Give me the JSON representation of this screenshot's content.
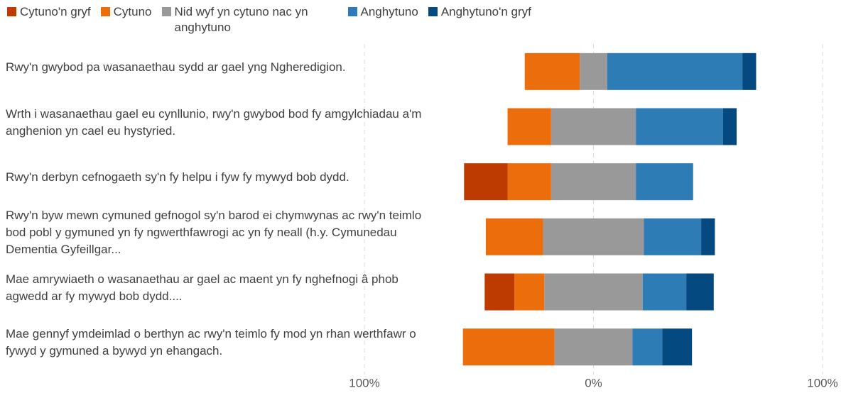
{
  "chart_data": {
    "type": "diverging-bar",
    "categories": [
      "Rwy'n gwybod pa wasanaethau sydd ar gael yng Ngheredigion.",
      "Wrth i wasanaethau gael eu cynllunio, rwy'n gwybod bod fy amgylchiadau a'm anghenion yn cael eu hystyried.",
      "Rwy'n derbyn cefnogaeth sy'n fy helpu i fyw fy mywyd bob dydd.",
      "Rwy'n byw mewn cymuned gefnogol sy'n barod ei chymwynas ac rwy'n teimlo bod pobl y gymuned yn fy ngwerthfawrogi ac yn fy neall (h.y. Cymunedau Dementia Gyfeillgar...",
      "Mae amrywiaeth o wasanaethau ar gael ac maent yn fy nghefnogi â phob agwedd ar fy mywyd bob dydd....",
      "Mae gennyf ymdeimlad o berthyn ac rwy'n teimlo fy mod yn rhan werthfawr o fywyd y gymuned a bywyd yn ehangach."
    ],
    "series": [
      {
        "name": "Cytuno'n gryf",
        "color": "#bd3a00",
        "values": [
          0,
          0,
          19,
          0,
          13,
          0
        ]
      },
      {
        "name": "Cytuno",
        "color": "#ec6d0c",
        "values": [
          24,
          19,
          19,
          25,
          13,
          40
        ]
      },
      {
        "name": "Nid wyf yn cytuno nac yn anghytuno",
        "color": "#999999",
        "values": [
          12,
          37,
          37,
          44,
          43,
          34
        ]
      },
      {
        "name": "Anghytuno",
        "color": "#2e7cb5",
        "values": [
          59,
          38,
          25,
          25,
          19,
          13
        ]
      },
      {
        "name": "Anghytuno'n gryf",
        "color": "#044a80",
        "values": [
          6,
          6,
          0,
          6,
          12,
          13
        ]
      }
    ],
    "xlim": [
      -100,
      100
    ],
    "xticks": [
      {
        "value": -100,
        "label": "100%"
      },
      {
        "value": 0,
        "label": "0%"
      },
      {
        "value": 100,
        "label": "100%"
      }
    ],
    "grid": true,
    "legend": "top"
  }
}
